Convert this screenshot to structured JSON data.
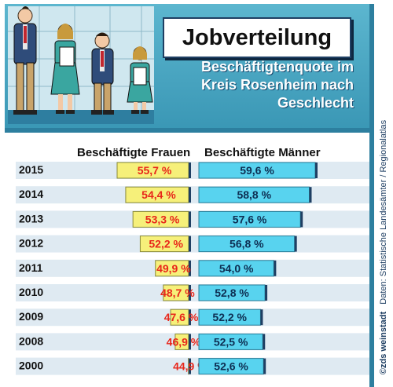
{
  "title": "Jobverteilung",
  "subtitle_lines": [
    "Beschäftigtenquote im",
    "Kreis Rosenheim nach",
    "Geschlecht"
  ],
  "source": {
    "brand": "©zds weinstadt",
    "text": "Daten: Statistische Landesämter / Regionalatlas"
  },
  "colors": {
    "panel": "#47a7c3",
    "panel_dark": "#24708f",
    "women_bar": "#f6f07a",
    "women_text": "#e8261a",
    "men_bar": "#58d3ef",
    "men_text": "#0d2e52",
    "row_band": "#dfeaf2"
  },
  "chart_data": {
    "type": "bar",
    "categories": [
      "2015",
      "2014",
      "2013",
      "2012",
      "2011",
      "2010",
      "2009",
      "2008",
      "2000"
    ],
    "series": [
      {
        "name": "Beschäftigte Frauen",
        "values": [
          55.7,
          54.4,
          53.3,
          52.2,
          49.9,
          48.7,
          47.6,
          46.9,
          44.9
        ],
        "labels": [
          "55,7 %",
          "54,4 %",
          "53,3 %",
          "52,2 %",
          "49,9 %",
          "48,7 %",
          "47,6 %",
          "46,9 %",
          "44,9 %"
        ]
      },
      {
        "name": "Beschäftigte Männer",
        "values": [
          59.6,
          58.8,
          57.6,
          56.8,
          54.0,
          52.8,
          52.2,
          52.5,
          52.6
        ],
        "labels": [
          "59,6 %",
          "58,8 %",
          "57,6 %",
          "56,8 %",
          "54,0 %",
          "52,8 %",
          "52,2 %",
          "52,5 %",
          "52,6 %"
        ]
      }
    ],
    "orientation": "horizontal",
    "grid": false,
    "legend": "none"
  }
}
